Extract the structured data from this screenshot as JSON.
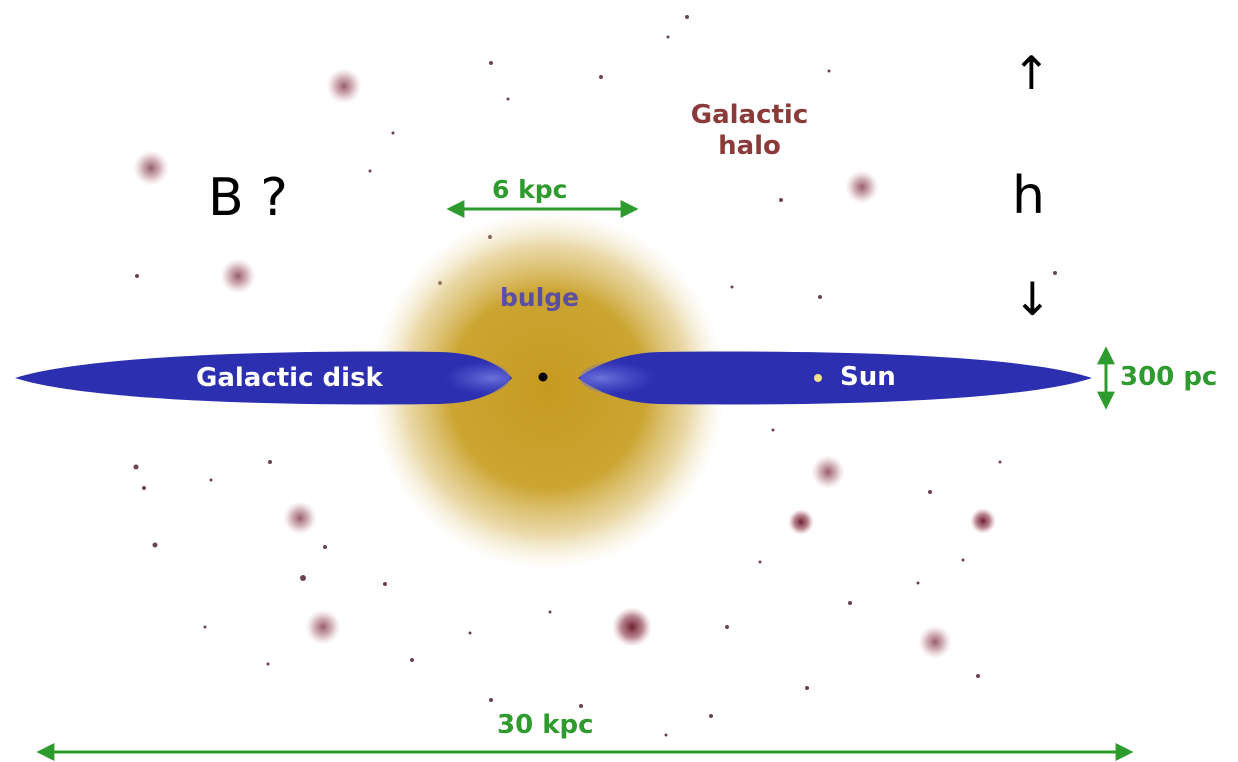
{
  "labels": {
    "halo_line1": "Galactic",
    "halo_line2": "halo",
    "bulge_width": "6 kpc",
    "bulge": "bulge",
    "disk": "Galactic disk",
    "sun": "Sun",
    "disk_thickness": "300 pc",
    "disk_diameter": "30 kpc"
  },
  "annotations": {
    "field": "B ?",
    "height": "h",
    "arrow_up": "↑",
    "arrow_down": "↓"
  },
  "colors": {
    "background": "#ffffff",
    "disk": "#2b2fb0",
    "disk_inner_glow": "#5a5fd6",
    "bulge": "#c9a027",
    "dimension_arrows": "#2e9b2e",
    "halo_text": "#8b3a3a",
    "bulge_text": "#5a4fa0",
    "disk_text": "#ffffff",
    "sun_text": "#ffffff",
    "sun_dot": "#f2e28a",
    "center_dot": "#000000",
    "globular_clusters": "#8c4a5a"
  }
}
